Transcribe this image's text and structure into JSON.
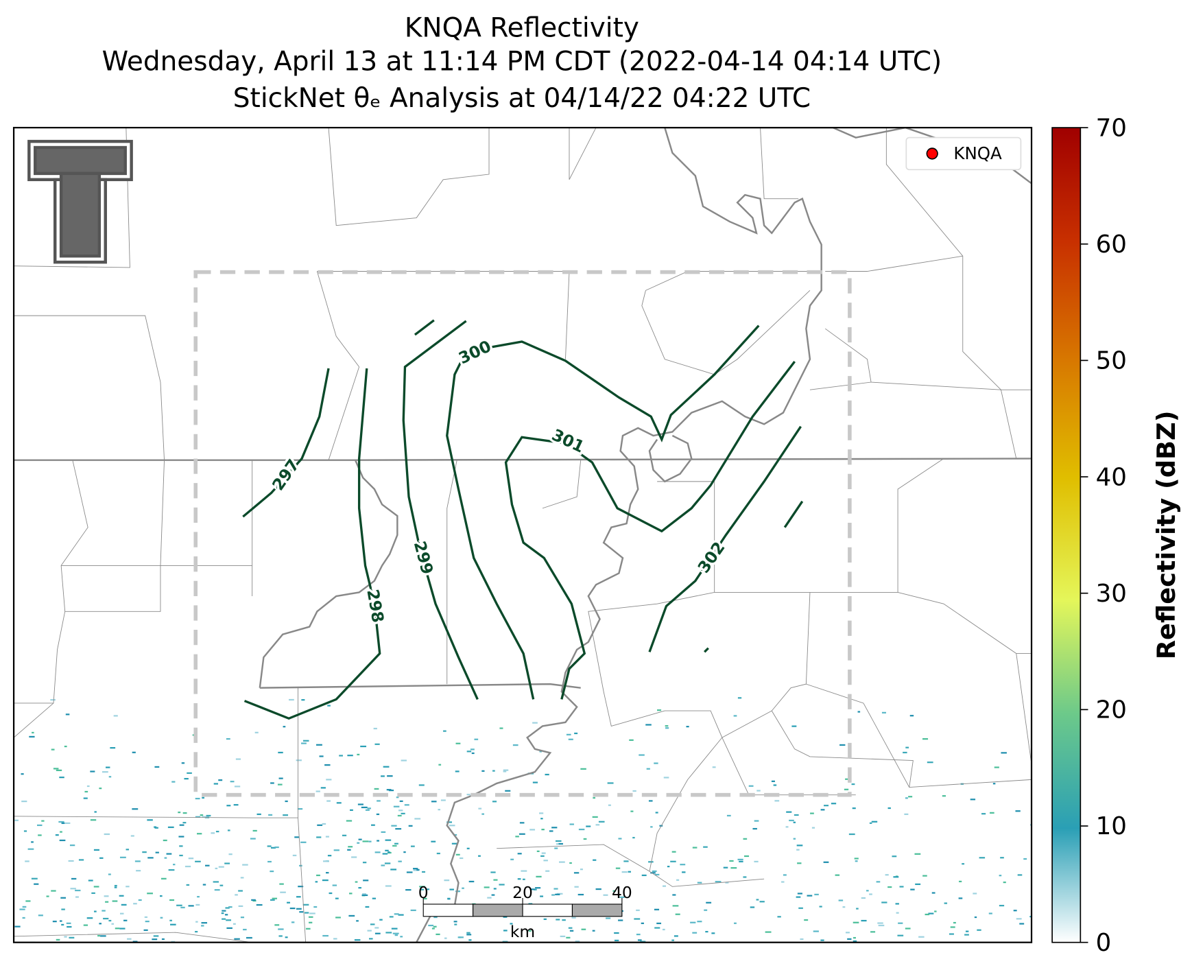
{
  "title": [
    "KNQA Reflectivity",
    "Wednesday, April 13 at 11:14 PM CDT (2022-04-14 04:14 UTC)",
    "StickNet θₑ Analysis at 04/14/22 04:22 UTC"
  ],
  "legend": {
    "label": "KNQA",
    "color": "#ff0000"
  },
  "colorbar": {
    "label": "Reflectivity (dBZ)",
    "ticks": [
      0,
      10,
      20,
      30,
      40,
      50,
      60,
      70
    ]
  },
  "contours": {
    "color": "#0b4a2a",
    "labels": [
      297,
      298,
      299,
      300,
      301,
      302
    ]
  },
  "scalebar": {
    "ticks": [
      0,
      20,
      40
    ],
    "unit": "km"
  }
}
